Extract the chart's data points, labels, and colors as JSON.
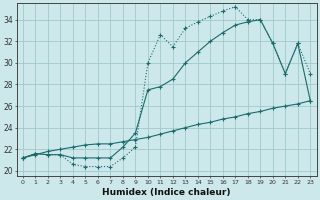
{
  "xlabel": "Humidex (Indice chaleur)",
  "bg_color": "#cde8ea",
  "grid_color": "#a0c8cc",
  "line_color": "#1a6b6b",
  "x_ticks": [
    0,
    1,
    2,
    3,
    4,
    5,
    6,
    7,
    8,
    9,
    10,
    11,
    12,
    13,
    14,
    15,
    16,
    17,
    18,
    19,
    20,
    21,
    22,
    23
  ],
  "y_ticks": [
    20,
    22,
    24,
    26,
    28,
    30,
    32,
    34
  ],
  "xlim": [
    -0.5,
    23.5
  ],
  "ylim": [
    19.5,
    35.5
  ],
  "line1_x": [
    0,
    1,
    2,
    3,
    4,
    5,
    6,
    7,
    8,
    9,
    10,
    11,
    12,
    13,
    14,
    15,
    16,
    17,
    18,
    19,
    20,
    21,
    22,
    23
  ],
  "line1_y": [
    21.2,
    21.6,
    21.5,
    21.5,
    20.6,
    20.4,
    20.4,
    20.4,
    21.2,
    22.2,
    30.0,
    32.6,
    31.5,
    33.2,
    33.8,
    34.3,
    34.8,
    35.2,
    34.0,
    34.0,
    31.8,
    29.0,
    31.8,
    29.0
  ],
  "line2_x": [
    0,
    1,
    2,
    3,
    4,
    5,
    6,
    7,
    8,
    9,
    10,
    11,
    12,
    13,
    14,
    15,
    16,
    17,
    18,
    19,
    20,
    21,
    22,
    23
  ],
  "line2_y": [
    21.2,
    21.6,
    21.5,
    21.5,
    21.2,
    21.2,
    21.2,
    21.2,
    22.2,
    23.5,
    27.5,
    27.8,
    28.5,
    30.0,
    31.0,
    32.0,
    32.8,
    33.5,
    33.8,
    34.0,
    31.8,
    29.0,
    31.8,
    26.5
  ],
  "line3_x": [
    0,
    1,
    2,
    3,
    4,
    5,
    6,
    7,
    8,
    9,
    10,
    11,
    12,
    13,
    14,
    15,
    16,
    17,
    18,
    19,
    20,
    21,
    22,
    23
  ],
  "line3_y": [
    21.2,
    21.5,
    21.8,
    22.0,
    22.2,
    22.4,
    22.5,
    22.5,
    22.7,
    22.9,
    23.1,
    23.4,
    23.7,
    24.0,
    24.3,
    24.5,
    24.8,
    25.0,
    25.3,
    25.5,
    25.8,
    26.0,
    26.2,
    26.5
  ]
}
